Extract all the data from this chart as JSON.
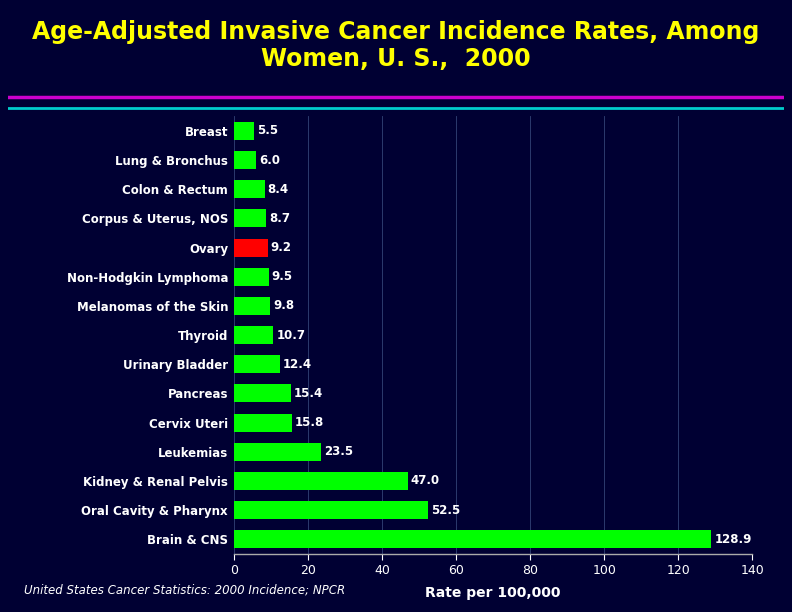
{
  "title": "Age-Adjusted Invasive Cancer Incidence Rates, Among\nWomen, U. S.,  2000",
  "title_color": "#FFFF00",
  "background_color": "#000033",
  "categories": [
    "Breast",
    "Lung & Bronchus",
    "Colon & Rectum",
    "Corpus & Uterus, NOS",
    "Ovary",
    "Non-Hodgkin Lymphoma",
    "Melanomas of the Skin",
    "Thyroid",
    "Urinary Bladder",
    "Pancreas",
    "Cervix Uteri",
    "Leukemias",
    "Kidney & Renal Pelvis",
    "Oral Cavity & Pharynx",
    "Brain & CNS"
  ],
  "values": [
    128.9,
    52.5,
    47.0,
    23.5,
    15.8,
    15.4,
    12.4,
    10.7,
    9.8,
    9.5,
    9.2,
    8.7,
    8.4,
    6.0,
    5.5
  ],
  "bar_colors": [
    "#00FF00",
    "#00FF00",
    "#00FF00",
    "#00FF00",
    "#00FF00",
    "#00FF00",
    "#00FF00",
    "#00FF00",
    "#00FF00",
    "#00FF00",
    "#FF0000",
    "#00FF00",
    "#00FF00",
    "#00FF00",
    "#00FF00"
  ],
  "xlabel": "Rate per 100,000",
  "xlabel_color": "#FFFFFF",
  "tick_color": "#FFFFFF",
  "label_color": "#FFFFFF",
  "xlim": [
    0,
    140
  ],
  "xticks": [
    0,
    20,
    40,
    60,
    80,
    100,
    120,
    140
  ],
  "sep_color_top": "#CC00CC",
  "sep_color_bottom": "#00CCCC",
  "footer_text": "United States Cancer Statistics: 2000 Incidence; NPCR",
  "footer_color": "#FFFFFF",
  "cdc_bg": "#003399",
  "cdc_red": "#CC0000",
  "cdc_text": "#FFFFFF"
}
